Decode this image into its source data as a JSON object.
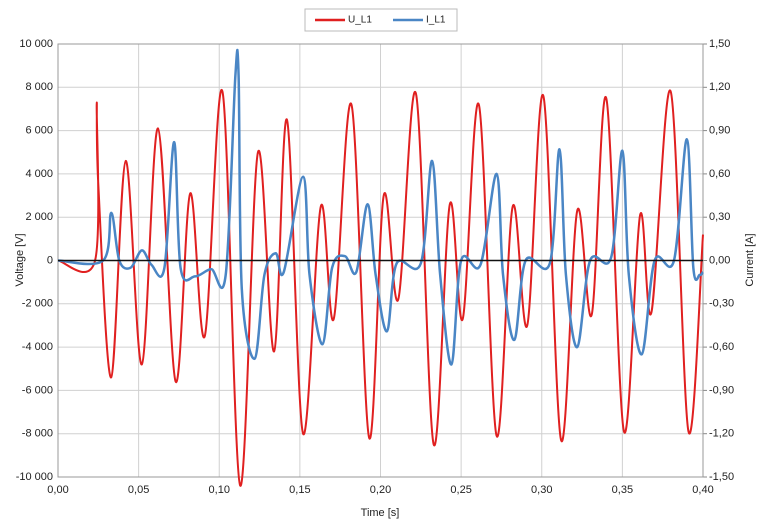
{
  "chart_data": {
    "type": "line",
    "xlabel": "Time [s]",
    "ylabel": "Voltage [V]",
    "y2label": "Current [A]",
    "grid": true,
    "legend": "top",
    "xlim": [
      0,
      0.4
    ],
    "xticks": [
      {
        "value": 0,
        "label": "0,00"
      },
      {
        "value": 0.05,
        "label": "0,05"
      },
      {
        "value": 0.1,
        "label": "0,10"
      },
      {
        "value": 0.15,
        "label": "0,15"
      },
      {
        "value": 0.2,
        "label": "0,20"
      },
      {
        "value": 0.25,
        "label": "0,25"
      },
      {
        "value": 0.3,
        "label": "0,30"
      },
      {
        "value": 0.35,
        "label": "0,35"
      },
      {
        "value": 0.4,
        "label": "0,40"
      }
    ],
    "ylim": [
      -10000,
      10000
    ],
    "yticks": [
      {
        "value": -10000,
        "label": "-10 000"
      },
      {
        "value": -8000,
        "label": "-8 000"
      },
      {
        "value": -6000,
        "label": "-6 000"
      },
      {
        "value": -4000,
        "label": "-4 000"
      },
      {
        "value": -2000,
        "label": "-2 000"
      },
      0,
      {
        "value": 2000,
        "label": "2 000"
      },
      {
        "value": 4000,
        "label": "4 000"
      },
      {
        "value": 6000,
        "label": "6 000"
      },
      {
        "value": 8000,
        "label": "8 000"
      },
      {
        "value": 10000,
        "label": "10 000"
      }
    ],
    "y2lim": [
      -1.5,
      1.5
    ],
    "y2ticks": [
      {
        "value": -1.5,
        "label": "-1,50"
      },
      {
        "value": -1.2,
        "label": "-1,20"
      },
      {
        "value": -0.9,
        "label": "-0,90"
      },
      {
        "value": -0.6,
        "label": "-0,60"
      },
      {
        "value": -0.3,
        "label": "-0,30"
      },
      {
        "value": 0,
        "label": "0,00"
      },
      {
        "value": 0.3,
        "label": "0,30"
      },
      {
        "value": 0.6,
        "label": "0,60"
      },
      {
        "value": 0.9,
        "label": "0,90"
      },
      {
        "value": 1.2,
        "label": "1,20"
      },
      {
        "value": 1.5,
        "label": "1,50"
      }
    ],
    "series": [
      {
        "name": "U_L1",
        "color": "#e02020",
        "axis": "y",
        "x": [
          0,
          0.023,
          0.024,
          0.025,
          0.033,
          0.042,
          0.052,
          0.062,
          0.073,
          0.082,
          0.091,
          0.102,
          0.113,
          0.124,
          0.134,
          0.142,
          0.152,
          0.163,
          0.171,
          0.182,
          0.193,
          0.202,
          0.211,
          0.222,
          0.233,
          0.243,
          0.251,
          0.261,
          0.272,
          0.282,
          0.291,
          0.301,
          0.312,
          0.322,
          0.331,
          0.34,
          0.351,
          0.361,
          0.368,
          0.38,
          0.391,
          0.4
        ],
        "values": [
          0,
          0,
          7200,
          3500,
          -5400,
          4600,
          -4800,
          6100,
          -5600,
          3100,
          -3500,
          7800,
          -10400,
          5000,
          -4200,
          6500,
          -8000,
          2500,
          -2700,
          7200,
          -8200,
          3000,
          -1800,
          7700,
          -8500,
          2600,
          -2700,
          7200,
          -8100,
          2500,
          -3000,
          7600,
          -8300,
          2300,
          -2500,
          7500,
          -7900,
          2100,
          -2400,
          7800,
          -7900,
          1200
        ]
      },
      {
        "name": "I_L1",
        "color": "#4a86c5",
        "axis": "y2",
        "x": [
          0,
          0.028,
          0.033,
          0.038,
          0.045,
          0.052,
          0.058,
          0.066,
          0.072,
          0.076,
          0.085,
          0.095,
          0.104,
          0.11,
          0.112,
          0.114,
          0.122,
          0.128,
          0.135,
          0.14,
          0.152,
          0.156,
          0.164,
          0.17,
          0.178,
          0.185,
          0.192,
          0.197,
          0.204,
          0.21,
          0.225,
          0.232,
          0.237,
          0.244,
          0.25,
          0.262,
          0.272,
          0.276,
          0.283,
          0.29,
          0.305,
          0.311,
          0.315,
          0.322,
          0.33,
          0.343,
          0.35,
          0.354,
          0.362,
          0.37,
          0.382,
          0.39,
          0.394,
          0.398,
          0.4
        ],
        "values": [
          0,
          0,
          0.33,
          0,
          -0.05,
          0.07,
          -0.03,
          -0.05,
          0.82,
          -0.05,
          -0.11,
          -0.06,
          -0.1,
          1.28,
          1.28,
          -0.2,
          -0.68,
          -0.1,
          0.05,
          -0.08,
          0.58,
          -0.1,
          -0.58,
          -0.05,
          0.03,
          -0.08,
          0.39,
          -0.1,
          -0.49,
          -0.02,
          -0.02,
          0.69,
          -0.1,
          -0.72,
          0,
          -0.03,
          0.6,
          -0.1,
          -0.55,
          0,
          -0.02,
          0.77,
          -0.1,
          -0.6,
          0,
          0.02,
          0.76,
          -0.1,
          -0.65,
          0,
          0,
          0.84,
          -0.05,
          -0.1,
          -0.08
        ]
      }
    ]
  }
}
